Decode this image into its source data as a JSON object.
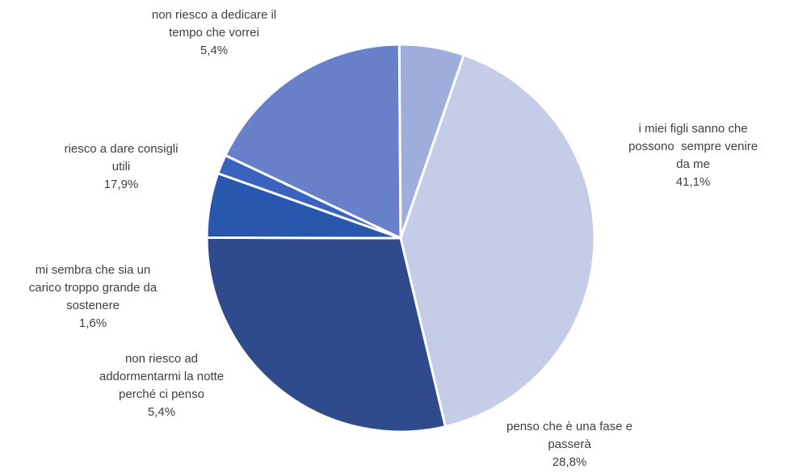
{
  "chart_data": {
    "type": "pie",
    "title": "",
    "slices": [
      {
        "label": [
          "i miei figli sanno che",
          "possono  sempre venire",
          "da me"
        ],
        "value": 41.1,
        "value_label": "41,1%",
        "color": "#c5cce7"
      },
      {
        "label": [
          "penso che è una fase e",
          "passerà"
        ],
        "value": 28.8,
        "value_label": "28,8%",
        "color": "#2f4b8c"
      },
      {
        "label": [
          "non riesco ad",
          "addormentarmi la notte",
          "perché ci penso"
        ],
        "value": 5.4,
        "value_label": "5,4%",
        "color": "#2857ad"
      },
      {
        "label": [
          "mi sembra che sia un",
          "carico troppo grande da",
          "sostenere"
        ],
        "value": 1.6,
        "value_label": "1,6%",
        "color": "#3a63bf"
      },
      {
        "label": [
          "riesco a dare consigli",
          "utili"
        ],
        "value": 17.9,
        "value_label": "17,9%",
        "color": "#6780c9"
      },
      {
        "label": [
          "non riesco a dedicare il",
          "tempo che vorrei"
        ],
        "value": 5.4,
        "value_label": "5,4%",
        "color": "#9eaddb"
      }
    ]
  }
}
